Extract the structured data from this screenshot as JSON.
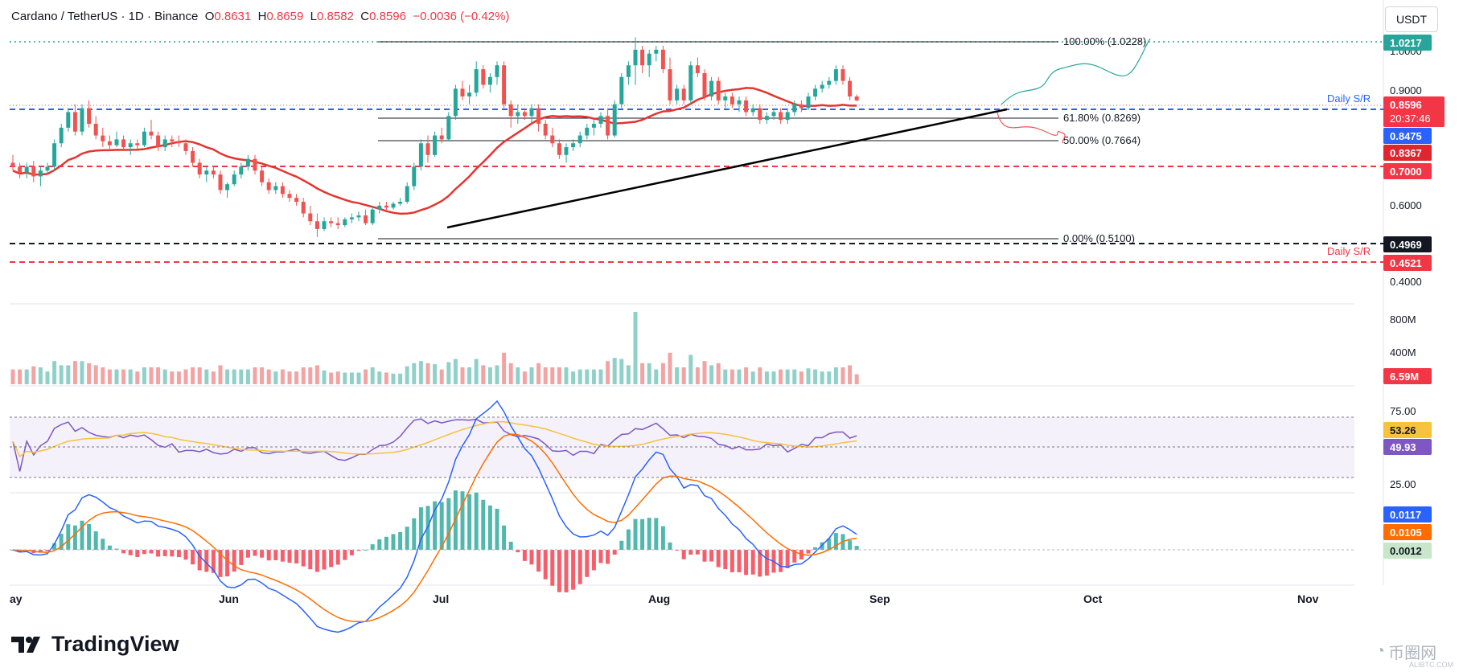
{
  "header": {
    "symbol": "Cardano / TetherUS · 1D · Binance",
    "open_label": "O",
    "open": "0.8631",
    "high_label": "H",
    "high": "0.8659",
    "low_label": "L",
    "low": "0.8582",
    "close_label": "C",
    "close": "0.8596",
    "change": "−0.0036 (−0.42%)"
  },
  "currency_button": "USDT",
  "branding": {
    "logo": "TradingView",
    "watermark": "币圈网",
    "watermark_sub": "ALIBTC.COM"
  },
  "colors": {
    "up": "#26a69a",
    "down": "#ef5350",
    "ma": "#e5342f",
    "rsi": "#7e57c2",
    "rsi_ma": "#f7c23d",
    "macd": "#2962ff",
    "signal": "#ff6d00",
    "accent_red": "#f23645"
  },
  "chart_data": [
    {
      "type": "candlestick",
      "title": "Cardano / TetherUS · 1D · Binance",
      "x_labels": [
        "ay",
        "Jun",
        "Jul",
        "Aug",
        "Sep",
        "Oct",
        "Nov"
      ],
      "ylim": [
        0.36,
        1.1
      ],
      "y_ticks": [
        "1.0000",
        "0.9000",
        "0.6000",
        "0.4000"
      ],
      "candles": [
        [
          0.7,
          0.72,
          0.68,
          0.69
        ],
        [
          0.69,
          0.7,
          0.66,
          0.675
        ],
        [
          0.675,
          0.7,
          0.66,
          0.69
        ],
        [
          0.69,
          0.705,
          0.65,
          0.665
        ],
        [
          0.665,
          0.69,
          0.64,
          0.68
        ],
        [
          0.68,
          0.7,
          0.67,
          0.69
        ],
        [
          0.69,
          0.76,
          0.68,
          0.75
        ],
        [
          0.75,
          0.8,
          0.74,
          0.79
        ],
        [
          0.79,
          0.84,
          0.78,
          0.83
        ],
        [
          0.83,
          0.85,
          0.77,
          0.78
        ],
        [
          0.78,
          0.85,
          0.77,
          0.84
        ],
        [
          0.84,
          0.86,
          0.79,
          0.8
        ],
        [
          0.8,
          0.82,
          0.76,
          0.77
        ],
        [
          0.77,
          0.79,
          0.74,
          0.755
        ],
        [
          0.755,
          0.77,
          0.73,
          0.745
        ],
        [
          0.745,
          0.78,
          0.74,
          0.76
        ],
        [
          0.76,
          0.77,
          0.73,
          0.74
        ],
        [
          0.74,
          0.76,
          0.72,
          0.75
        ],
        [
          0.75,
          0.76,
          0.73,
          0.745
        ],
        [
          0.745,
          0.79,
          0.74,
          0.78
        ],
        [
          0.78,
          0.81,
          0.76,
          0.77
        ],
        [
          0.77,
          0.78,
          0.73,
          0.74
        ],
        [
          0.74,
          0.77,
          0.73,
          0.76
        ],
        [
          0.76,
          0.77,
          0.74,
          0.755
        ],
        [
          0.755,
          0.77,
          0.74,
          0.75
        ],
        [
          0.75,
          0.76,
          0.72,
          0.73
        ],
        [
          0.73,
          0.74,
          0.69,
          0.7
        ],
        [
          0.7,
          0.71,
          0.66,
          0.67
        ],
        [
          0.67,
          0.69,
          0.65,
          0.68
        ],
        [
          0.68,
          0.69,
          0.66,
          0.67
        ],
        [
          0.67,
          0.68,
          0.62,
          0.63
        ],
        [
          0.63,
          0.65,
          0.61,
          0.645
        ],
        [
          0.645,
          0.68,
          0.64,
          0.67
        ],
        [
          0.67,
          0.7,
          0.66,
          0.69
        ],
        [
          0.69,
          0.72,
          0.68,
          0.71
        ],
        [
          0.71,
          0.72,
          0.67,
          0.68
        ],
        [
          0.68,
          0.69,
          0.64,
          0.65
        ],
        [
          0.65,
          0.66,
          0.62,
          0.63
        ],
        [
          0.63,
          0.65,
          0.62,
          0.64
        ],
        [
          0.64,
          0.65,
          0.61,
          0.62
        ],
        [
          0.62,
          0.63,
          0.6,
          0.61
        ],
        [
          0.61,
          0.62,
          0.59,
          0.6
        ],
        [
          0.6,
          0.61,
          0.56,
          0.57
        ],
        [
          0.57,
          0.59,
          0.54,
          0.55
        ],
        [
          0.55,
          0.57,
          0.51,
          0.53
        ],
        [
          0.53,
          0.56,
          0.525,
          0.55
        ],
        [
          0.55,
          0.56,
          0.535,
          0.545
        ],
        [
          0.545,
          0.56,
          0.53,
          0.54
        ],
        [
          0.54,
          0.56,
          0.535,
          0.555
        ],
        [
          0.555,
          0.57,
          0.545,
          0.56
        ],
        [
          0.56,
          0.575,
          0.55,
          0.565
        ],
        [
          0.565,
          0.58,
          0.54,
          0.545
        ],
        [
          0.545,
          0.59,
          0.54,
          0.58
        ],
        [
          0.58,
          0.6,
          0.57,
          0.59
        ],
        [
          0.59,
          0.6,
          0.575,
          0.585
        ],
        [
          0.585,
          0.6,
          0.58,
          0.595
        ],
        [
          0.595,
          0.61,
          0.59,
          0.6
        ],
        [
          0.6,
          0.65,
          0.595,
          0.64
        ],
        [
          0.64,
          0.7,
          0.63,
          0.69
        ],
        [
          0.69,
          0.76,
          0.68,
          0.75
        ],
        [
          0.75,
          0.77,
          0.7,
          0.72
        ],
        [
          0.72,
          0.78,
          0.715,
          0.77
        ],
        [
          0.77,
          0.79,
          0.75,
          0.76
        ],
        [
          0.76,
          0.83,
          0.755,
          0.82
        ],
        [
          0.82,
          0.9,
          0.81,
          0.89
        ],
        [
          0.89,
          0.91,
          0.86,
          0.87
        ],
        [
          0.87,
          0.9,
          0.85,
          0.88
        ],
        [
          0.88,
          0.96,
          0.87,
          0.94
        ],
        [
          0.94,
          0.95,
          0.89,
          0.9
        ],
        [
          0.9,
          0.93,
          0.88,
          0.92
        ],
        [
          0.92,
          0.96,
          0.9,
          0.95
        ],
        [
          0.95,
          0.96,
          0.84,
          0.85
        ],
        [
          0.85,
          0.86,
          0.79,
          0.82
        ],
        [
          0.82,
          0.85,
          0.8,
          0.83
        ],
        [
          0.83,
          0.84,
          0.81,
          0.82
        ],
        [
          0.82,
          0.85,
          0.8,
          0.84
        ],
        [
          0.84,
          0.85,
          0.78,
          0.8
        ],
        [
          0.8,
          0.81,
          0.76,
          0.77
        ],
        [
          0.77,
          0.79,
          0.74,
          0.75
        ],
        [
          0.75,
          0.76,
          0.71,
          0.72
        ],
        [
          0.72,
          0.75,
          0.7,
          0.74
        ],
        [
          0.74,
          0.76,
          0.73,
          0.75
        ],
        [
          0.75,
          0.78,
          0.74,
          0.77
        ],
        [
          0.77,
          0.8,
          0.76,
          0.79
        ],
        [
          0.79,
          0.81,
          0.77,
          0.8
        ],
        [
          0.8,
          0.83,
          0.79,
          0.82
        ],
        [
          0.82,
          0.84,
          0.76,
          0.77
        ],
        [
          0.77,
          0.86,
          0.765,
          0.85
        ],
        [
          0.85,
          0.93,
          0.84,
          0.92
        ],
        [
          0.92,
          0.96,
          0.9,
          0.95
        ],
        [
          0.95,
          1.022,
          0.9,
          0.99
        ],
        [
          0.99,
          1.0,
          0.93,
          0.95
        ],
        [
          0.95,
          0.99,
          0.92,
          0.98
        ],
        [
          0.98,
          1.0,
          0.96,
          0.99
        ],
        [
          0.99,
          1.0,
          0.93,
          0.94
        ],
        [
          0.94,
          0.97,
          0.85,
          0.86
        ],
        [
          0.86,
          0.9,
          0.85,
          0.89
        ],
        [
          0.89,
          0.9,
          0.85,
          0.86
        ],
        [
          0.86,
          0.96,
          0.85,
          0.95
        ],
        [
          0.95,
          0.97,
          0.92,
          0.93
        ],
        [
          0.93,
          0.94,
          0.86,
          0.87
        ],
        [
          0.87,
          0.92,
          0.86,
          0.91
        ],
        [
          0.91,
          0.92,
          0.85,
          0.86
        ],
        [
          0.86,
          0.88,
          0.84,
          0.87
        ],
        [
          0.87,
          0.88,
          0.84,
          0.85
        ],
        [
          0.85,
          0.87,
          0.83,
          0.86
        ],
        [
          0.86,
          0.87,
          0.82,
          0.83
        ],
        [
          0.83,
          0.85,
          0.82,
          0.84
        ],
        [
          0.84,
          0.85,
          0.8,
          0.81
        ],
        [
          0.81,
          0.83,
          0.8,
          0.82
        ],
        [
          0.82,
          0.84,
          0.81,
          0.83
        ],
        [
          0.83,
          0.84,
          0.8,
          0.81
        ],
        [
          0.81,
          0.84,
          0.8,
          0.83
        ],
        [
          0.83,
          0.86,
          0.82,
          0.85
        ],
        [
          0.85,
          0.86,
          0.83,
          0.84
        ],
        [
          0.84,
          0.88,
          0.835,
          0.87
        ],
        [
          0.87,
          0.9,
          0.86,
          0.89
        ],
        [
          0.89,
          0.91,
          0.88,
          0.9
        ],
        [
          0.9,
          0.92,
          0.89,
          0.91
        ],
        [
          0.91,
          0.95,
          0.9,
          0.94
        ],
        [
          0.94,
          0.95,
          0.9,
          0.91
        ],
        [
          0.91,
          0.92,
          0.86,
          0.87
        ],
        [
          0.87,
          0.875,
          0.858,
          0.86
        ]
      ],
      "moving_average": "red 50-day line",
      "volume": {
        "y_ticks": [
          "800M",
          "400M"
        ],
        "ylim": [
          0,
          1000
        ]
      },
      "rsi": {
        "y_ticks": [
          "75.00",
          "25.00"
        ],
        "ylim": [
          20,
          85
        ]
      },
      "macd": {
        "ylim": [
          -0.045,
          0.06
        ]
      },
      "annotations": {
        "fib_100": "100.00% (1.0228)",
        "fib_618": "61.80% (0.8269)",
        "fib_50": "50.00% (0.7664)",
        "fib_0": "0.00% (0.5100)",
        "daily_sr_top": "Daily S/R",
        "daily_sr_bottom": "Daily S/R"
      },
      "price_labels": {
        "p_10217": "1.0217",
        "p_08596": "0.8596",
        "p_countdown": "20:37:46",
        "p_08475": "0.8475",
        "p_08367": "0.8367",
        "p_07000": "0.7000",
        "p_04969": "0.4969",
        "p_04521": "0.4521",
        "vol_label": "6.59M",
        "rsi_ma_label": "53.26",
        "rsi_label": "49.93",
        "macd_label": "0.0117",
        "signal_label": "0.0105",
        "hist_label": "0.0012"
      }
    }
  ]
}
